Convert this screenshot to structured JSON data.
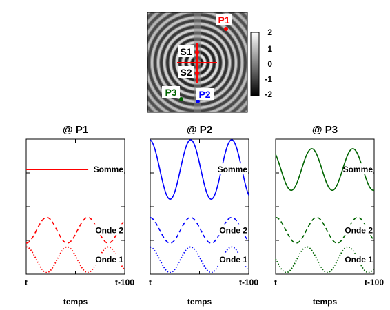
{
  "map": {
    "sources": [
      "S1",
      "S2"
    ],
    "points": [
      {
        "name": "P1",
        "color": "#ff0000"
      },
      {
        "name": "P2",
        "color": "#0000ff"
      },
      {
        "name": "P3",
        "color": "#006400"
      }
    ],
    "colorbar": {
      "ticks": [
        "2",
        "1",
        "0",
        "-1",
        "-2"
      ],
      "range": [
        -2,
        2
      ],
      "colormap": "gray"
    }
  },
  "chart_data": [
    {
      "type": "line",
      "title": "@ P1",
      "xlabel": "temps",
      "x_ticks": [
        "t",
        "t-100"
      ],
      "color": "#ff0000",
      "series": [
        {
          "name": "Somme",
          "style": "solid",
          "amplitude": 0,
          "phase": 0
        },
        {
          "name": "Onde 2",
          "style": "dashed",
          "amplitude": 1,
          "phase": 3.14
        },
        {
          "name": "Onde 1",
          "style": "dotted",
          "amplitude": 1,
          "phase": 0
        }
      ]
    },
    {
      "type": "line",
      "title": "@ P2",
      "xlabel": "temps",
      "x_ticks": [
        "t",
        "t-100"
      ],
      "color": "#0000ff",
      "series": [
        {
          "name": "Somme",
          "style": "solid",
          "amplitude": 2,
          "phase": 0.1
        },
        {
          "name": "Onde 2",
          "style": "dashed",
          "amplitude": 1,
          "phase": 0.1
        },
        {
          "name": "Onde 1",
          "style": "dotted",
          "amplitude": 1,
          "phase": 0.1
        }
      ]
    },
    {
      "type": "line",
      "title": "@ P3",
      "xlabel": "temps",
      "x_ticks": [
        "t",
        "t-100"
      ],
      "color": "#006400",
      "series": [
        {
          "name": "Somme",
          "style": "solid",
          "amplitude": 1.4,
          "phase": 0.75
        },
        {
          "name": "Onde 2",
          "style": "dashed",
          "amplitude": 1,
          "phase": 0
        },
        {
          "name": "Onde 1",
          "style": "dotted",
          "amplitude": 1,
          "phase": 1.5
        }
      ]
    }
  ]
}
